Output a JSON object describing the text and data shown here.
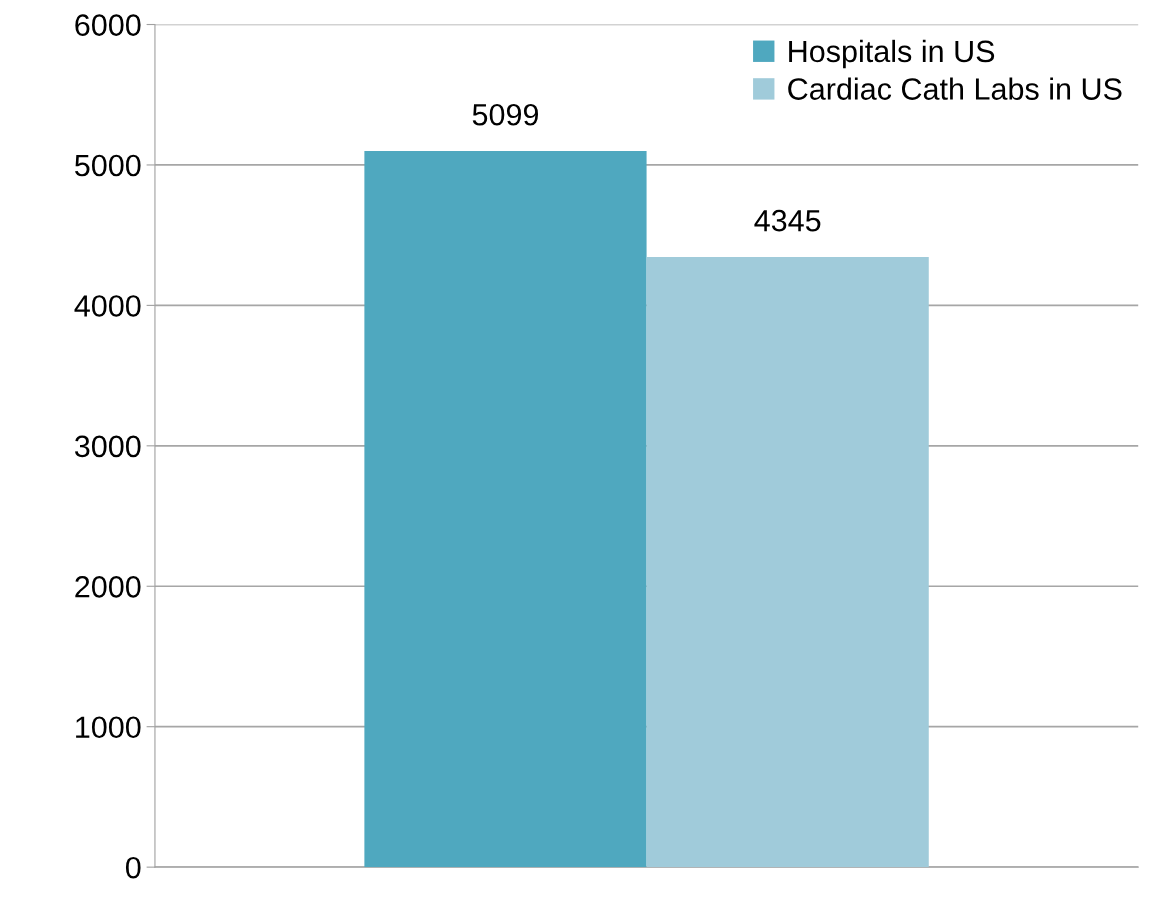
{
  "chart_data": {
    "type": "bar",
    "categories": [
      null
    ],
    "series": [
      {
        "name": "Hospitals in US",
        "color": "#4fa8bf",
        "values": [
          5099
        ]
      },
      {
        "name": "Cardiac Cath Labs in US",
        "color": "#a0cbda",
        "values": [
          4345
        ]
      }
    ],
    "ylim": [
      0,
      6000
    ],
    "yticks": [
      0,
      1000,
      2000,
      3000,
      4000,
      5000,
      6000
    ],
    "grid": "y",
    "legend": "top right",
    "data_labels": true
  }
}
